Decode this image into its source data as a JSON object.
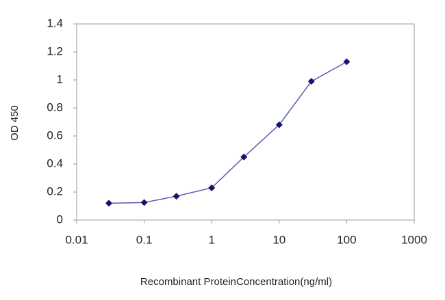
{
  "chart_data": {
    "type": "line",
    "x_label": "Recombinant ProteinConcentration(ng/ml)",
    "y_label": "OD 450",
    "log_x": true,
    "x": [
      0.03,
      0.1,
      0.3,
      1,
      3,
      10,
      30,
      100
    ],
    "series": [
      {
        "name": "OD 450",
        "color": "#5a5ab4",
        "marker_color": "#14146e",
        "values": [
          0.12,
          0.125,
          0.17,
          0.23,
          0.45,
          0.68,
          0.99,
          1.13
        ]
      }
    ],
    "xlim": [
      0.01,
      1000
    ],
    "xticks": [
      0.01,
      0.1,
      1,
      10,
      100,
      1000
    ],
    "ylim": [
      0,
      1.4
    ],
    "yticks": [
      0,
      0.2,
      0.4,
      0.6,
      0.8,
      1,
      1.2,
      1.4
    ],
    "grid": false
  }
}
